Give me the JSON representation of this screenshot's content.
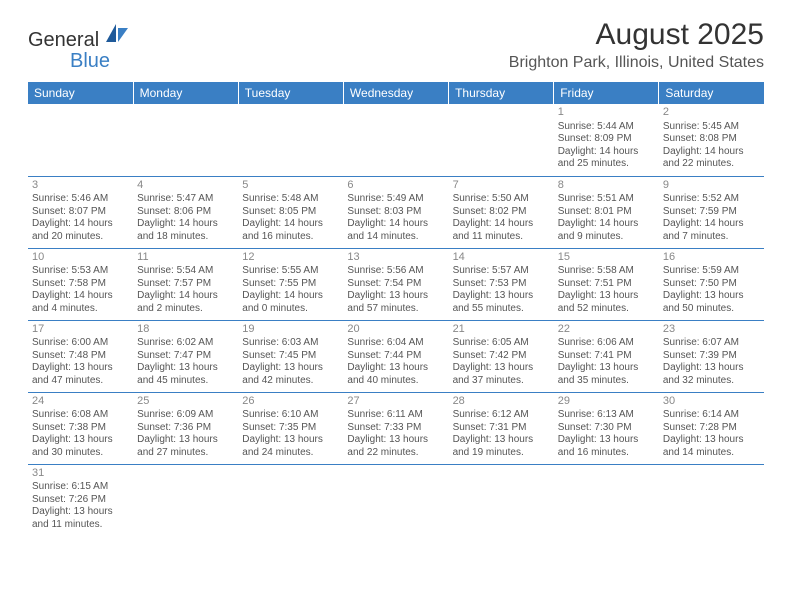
{
  "logo": {
    "brand1": "General",
    "brand2": "Blue"
  },
  "title": "August 2025",
  "location": "Brighton Park, Illinois, United States",
  "colors": {
    "header_bg": "#3a7fc4",
    "header_text": "#ffffff",
    "border": "#3a7fc4",
    "text": "#555555",
    "daynum": "#888888",
    "title_text": "#333333",
    "background": "#ffffff"
  },
  "weekday_headers": [
    "Sunday",
    "Monday",
    "Tuesday",
    "Wednesday",
    "Thursday",
    "Friday",
    "Saturday"
  ],
  "weeks": [
    [
      null,
      null,
      null,
      null,
      null,
      {
        "day": "1",
        "sunrise": "Sunrise: 5:44 AM",
        "sunset": "Sunset: 8:09 PM",
        "day1": "Daylight: 14 hours",
        "day2": "and 25 minutes."
      },
      {
        "day": "2",
        "sunrise": "Sunrise: 5:45 AM",
        "sunset": "Sunset: 8:08 PM",
        "day1": "Daylight: 14 hours",
        "day2": "and 22 minutes."
      }
    ],
    [
      {
        "day": "3",
        "sunrise": "Sunrise: 5:46 AM",
        "sunset": "Sunset: 8:07 PM",
        "day1": "Daylight: 14 hours",
        "day2": "and 20 minutes."
      },
      {
        "day": "4",
        "sunrise": "Sunrise: 5:47 AM",
        "sunset": "Sunset: 8:06 PM",
        "day1": "Daylight: 14 hours",
        "day2": "and 18 minutes."
      },
      {
        "day": "5",
        "sunrise": "Sunrise: 5:48 AM",
        "sunset": "Sunset: 8:05 PM",
        "day1": "Daylight: 14 hours",
        "day2": "and 16 minutes."
      },
      {
        "day": "6",
        "sunrise": "Sunrise: 5:49 AM",
        "sunset": "Sunset: 8:03 PM",
        "day1": "Daylight: 14 hours",
        "day2": "and 14 minutes."
      },
      {
        "day": "7",
        "sunrise": "Sunrise: 5:50 AM",
        "sunset": "Sunset: 8:02 PM",
        "day1": "Daylight: 14 hours",
        "day2": "and 11 minutes."
      },
      {
        "day": "8",
        "sunrise": "Sunrise: 5:51 AM",
        "sunset": "Sunset: 8:01 PM",
        "day1": "Daylight: 14 hours",
        "day2": "and 9 minutes."
      },
      {
        "day": "9",
        "sunrise": "Sunrise: 5:52 AM",
        "sunset": "Sunset: 7:59 PM",
        "day1": "Daylight: 14 hours",
        "day2": "and 7 minutes."
      }
    ],
    [
      {
        "day": "10",
        "sunrise": "Sunrise: 5:53 AM",
        "sunset": "Sunset: 7:58 PM",
        "day1": "Daylight: 14 hours",
        "day2": "and 4 minutes."
      },
      {
        "day": "11",
        "sunrise": "Sunrise: 5:54 AM",
        "sunset": "Sunset: 7:57 PM",
        "day1": "Daylight: 14 hours",
        "day2": "and 2 minutes."
      },
      {
        "day": "12",
        "sunrise": "Sunrise: 5:55 AM",
        "sunset": "Sunset: 7:55 PM",
        "day1": "Daylight: 14 hours",
        "day2": "and 0 minutes."
      },
      {
        "day": "13",
        "sunrise": "Sunrise: 5:56 AM",
        "sunset": "Sunset: 7:54 PM",
        "day1": "Daylight: 13 hours",
        "day2": "and 57 minutes."
      },
      {
        "day": "14",
        "sunrise": "Sunrise: 5:57 AM",
        "sunset": "Sunset: 7:53 PM",
        "day1": "Daylight: 13 hours",
        "day2": "and 55 minutes."
      },
      {
        "day": "15",
        "sunrise": "Sunrise: 5:58 AM",
        "sunset": "Sunset: 7:51 PM",
        "day1": "Daylight: 13 hours",
        "day2": "and 52 minutes."
      },
      {
        "day": "16",
        "sunrise": "Sunrise: 5:59 AM",
        "sunset": "Sunset: 7:50 PM",
        "day1": "Daylight: 13 hours",
        "day2": "and 50 minutes."
      }
    ],
    [
      {
        "day": "17",
        "sunrise": "Sunrise: 6:00 AM",
        "sunset": "Sunset: 7:48 PM",
        "day1": "Daylight: 13 hours",
        "day2": "and 47 minutes."
      },
      {
        "day": "18",
        "sunrise": "Sunrise: 6:02 AM",
        "sunset": "Sunset: 7:47 PM",
        "day1": "Daylight: 13 hours",
        "day2": "and 45 minutes."
      },
      {
        "day": "19",
        "sunrise": "Sunrise: 6:03 AM",
        "sunset": "Sunset: 7:45 PM",
        "day1": "Daylight: 13 hours",
        "day2": "and 42 minutes."
      },
      {
        "day": "20",
        "sunrise": "Sunrise: 6:04 AM",
        "sunset": "Sunset: 7:44 PM",
        "day1": "Daylight: 13 hours",
        "day2": "and 40 minutes."
      },
      {
        "day": "21",
        "sunrise": "Sunrise: 6:05 AM",
        "sunset": "Sunset: 7:42 PM",
        "day1": "Daylight: 13 hours",
        "day2": "and 37 minutes."
      },
      {
        "day": "22",
        "sunrise": "Sunrise: 6:06 AM",
        "sunset": "Sunset: 7:41 PM",
        "day1": "Daylight: 13 hours",
        "day2": "and 35 minutes."
      },
      {
        "day": "23",
        "sunrise": "Sunrise: 6:07 AM",
        "sunset": "Sunset: 7:39 PM",
        "day1": "Daylight: 13 hours",
        "day2": "and 32 minutes."
      }
    ],
    [
      {
        "day": "24",
        "sunrise": "Sunrise: 6:08 AM",
        "sunset": "Sunset: 7:38 PM",
        "day1": "Daylight: 13 hours",
        "day2": "and 30 minutes."
      },
      {
        "day": "25",
        "sunrise": "Sunrise: 6:09 AM",
        "sunset": "Sunset: 7:36 PM",
        "day1": "Daylight: 13 hours",
        "day2": "and 27 minutes."
      },
      {
        "day": "26",
        "sunrise": "Sunrise: 6:10 AM",
        "sunset": "Sunset: 7:35 PM",
        "day1": "Daylight: 13 hours",
        "day2": "and 24 minutes."
      },
      {
        "day": "27",
        "sunrise": "Sunrise: 6:11 AM",
        "sunset": "Sunset: 7:33 PM",
        "day1": "Daylight: 13 hours",
        "day2": "and 22 minutes."
      },
      {
        "day": "28",
        "sunrise": "Sunrise: 6:12 AM",
        "sunset": "Sunset: 7:31 PM",
        "day1": "Daylight: 13 hours",
        "day2": "and 19 minutes."
      },
      {
        "day": "29",
        "sunrise": "Sunrise: 6:13 AM",
        "sunset": "Sunset: 7:30 PM",
        "day1": "Daylight: 13 hours",
        "day2": "and 16 minutes."
      },
      {
        "day": "30",
        "sunrise": "Sunrise: 6:14 AM",
        "sunset": "Sunset: 7:28 PM",
        "day1": "Daylight: 13 hours",
        "day2": "and 14 minutes."
      }
    ],
    [
      {
        "day": "31",
        "sunrise": "Sunrise: 6:15 AM",
        "sunset": "Sunset: 7:26 PM",
        "day1": "Daylight: 13 hours",
        "day2": "and 11 minutes."
      },
      null,
      null,
      null,
      null,
      null,
      null
    ]
  ]
}
